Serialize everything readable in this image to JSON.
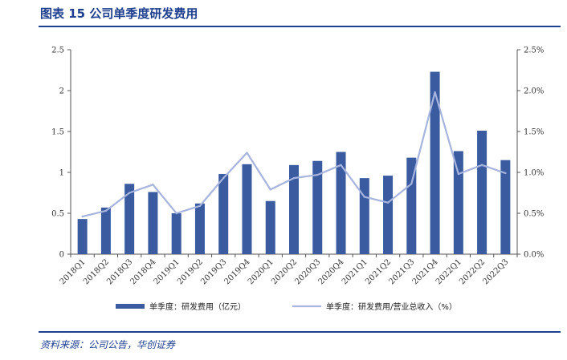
{
  "header": {
    "figure_title": "图表 15   公司单季度研发费用"
  },
  "footer": {
    "source": "资料来源：公司公告，华创证券"
  },
  "chart_data": {
    "type": "bar",
    "categories": [
      "2018Q1",
      "2018Q2",
      "2018Q3",
      "2018Q4",
      "2019Q1",
      "2019Q2",
      "2019Q3",
      "2019Q4",
      "2020Q1",
      "2020Q2",
      "2020Q3",
      "2020Q4",
      "2021Q1",
      "2021Q2",
      "2021Q3",
      "2021Q4",
      "2022Q1",
      "2022Q2",
      "2022Q3"
    ],
    "series": [
      {
        "name": "单季度：研发费用（亿元）",
        "type": "bar",
        "axis": "left",
        "color": "#3a5ba0",
        "values": [
          0.43,
          0.57,
          0.86,
          0.76,
          0.5,
          0.62,
          0.98,
          1.1,
          0.65,
          1.09,
          1.14,
          1.25,
          0.93,
          0.96,
          1.18,
          2.23,
          1.26,
          1.51,
          1.15
        ]
      },
      {
        "name": "单季度：研发费用/营业总收入（%）",
        "type": "line",
        "axis": "right",
        "color": "#a6b4de",
        "values": [
          0.46,
          0.53,
          0.75,
          0.85,
          0.5,
          0.59,
          0.93,
          1.24,
          0.79,
          0.93,
          0.97,
          1.09,
          0.7,
          0.63,
          0.86,
          1.98,
          0.98,
          1.09,
          0.99
        ]
      }
    ],
    "y_left": {
      "min": 0,
      "max": 2.5,
      "ticks": [
        0,
        0.5,
        1,
        1.5,
        2,
        2.5
      ],
      "tick_labels": [
        "0",
        "0.5",
        "1",
        "1.5",
        "2",
        "2.5"
      ]
    },
    "y_right": {
      "min": 0,
      "max": 2.5,
      "ticks": [
        0,
        0.5,
        1,
        1.5,
        2,
        2.5
      ],
      "tick_labels": [
        "0.0%",
        "0.5%",
        "1.0%",
        "1.5%",
        "2.0%",
        "2.5%"
      ]
    },
    "grid": false,
    "legend_position": "bottom"
  }
}
